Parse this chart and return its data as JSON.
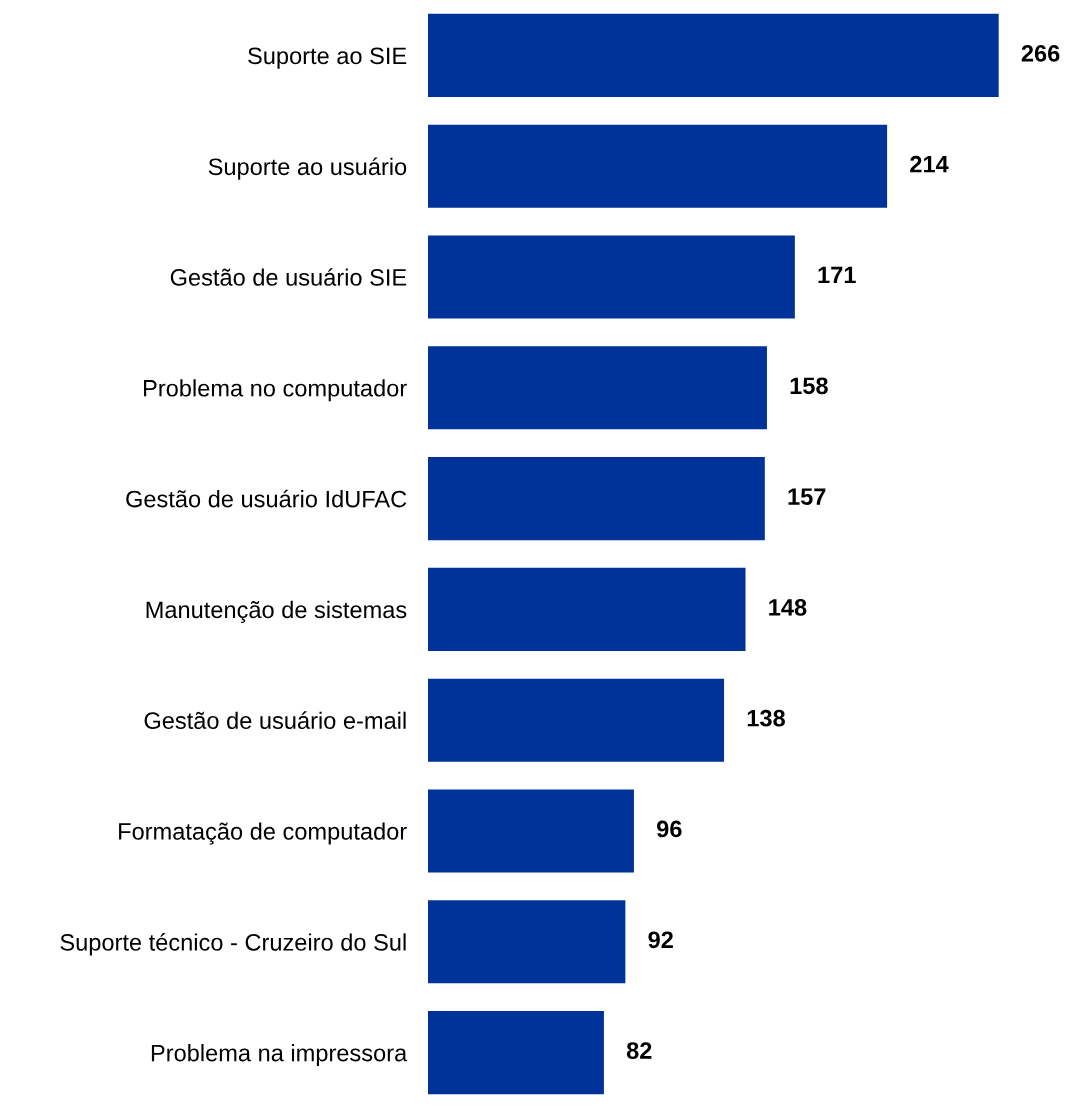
{
  "chart_data": {
    "type": "bar",
    "orientation": "horizontal",
    "categories": [
      "Suporte ao SIE",
      "Suporte ao usuário",
      "Gestão de usuário SIE",
      "Problema no computador",
      "Gestão de usuário IdUFAC",
      "Manutenção de sistemas",
      "Gestão de usuário e-mail",
      "Formatação de computador",
      "Suporte técnico - Cruzeiro do Sul",
      "Problema na impressora"
    ],
    "values": [
      266,
      214,
      171,
      158,
      157,
      148,
      138,
      96,
      92,
      82
    ],
    "color": "#003399",
    "data_labels": true,
    "grid": false,
    "legend": false
  }
}
